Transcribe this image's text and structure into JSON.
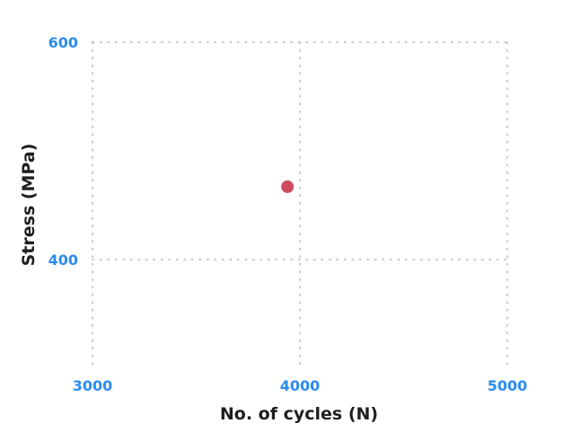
{
  "chart_data": {
    "type": "scatter",
    "title": "",
    "xlabel": "No. of cycles (N)",
    "ylabel": "Stress (MPa)",
    "xlim": [
      3000,
      5000
    ],
    "ylim": [
      300,
      600
    ],
    "xticks": [
      3000,
      4000,
      5000
    ],
    "xtick_labels": [
      "3000",
      "4000",
      "5000"
    ],
    "yticks": [
      400,
      600
    ],
    "ytick_labels": [
      "400",
      "600"
    ],
    "grid": true,
    "legend": "none",
    "series": [
      {
        "points": [
          {
            "x": 3940,
            "y": 467
          }
        ],
        "color": "#cf4a5e"
      }
    ],
    "colors": {
      "tick_labels": "#2b8cf0",
      "axis_titles": "#1f1f1f",
      "grid": "#b8b8b8"
    }
  }
}
